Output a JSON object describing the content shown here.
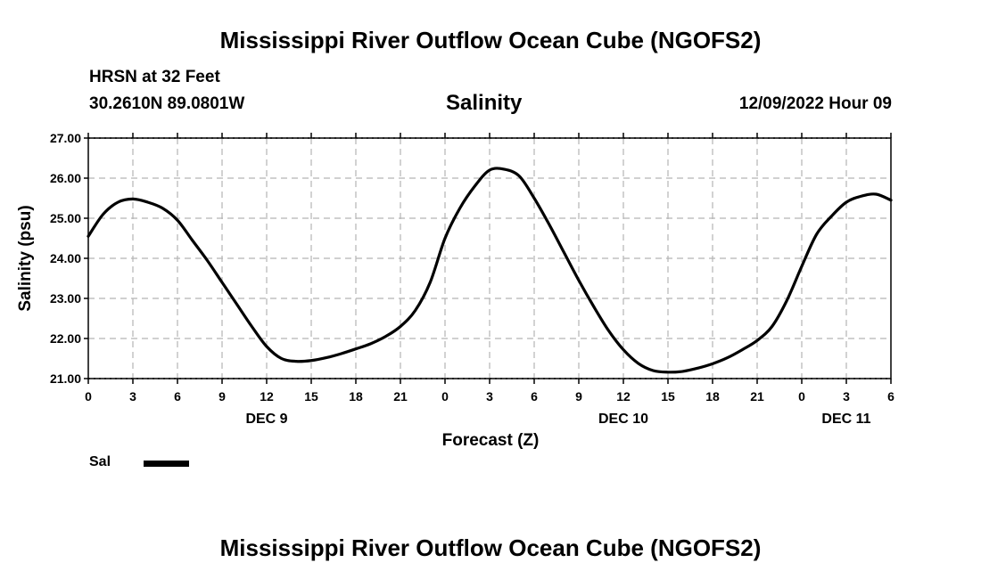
{
  "page": {
    "title_top": "Mississippi River Outflow Ocean Cube (NGOFS2)",
    "title_bottom": "Mississippi River Outflow Ocean Cube (NGOFS2)",
    "station_line": "HRSN at 32 Feet",
    "coords_line": "30.2610N  89.0801W",
    "variable_title": "Salinity",
    "datetime": "12/09/2022 Hour 09",
    "legend_label": "Sal"
  },
  "colors": {
    "line": "#000000",
    "grid": "#b4b4b4"
  },
  "chart_data": {
    "type": "line",
    "title": "Salinity",
    "xlabel": "Forecast (Z)",
    "ylabel": "Salinity (psu)",
    "xlim": [
      0,
      54
    ],
    "ylim": [
      21.0,
      27.0
    ],
    "yticks": [
      21.0,
      22.0,
      23.0,
      24.0,
      25.0,
      26.0,
      27.0
    ],
    "ytick_labels": [
      "21.00",
      "22.00",
      "23.00",
      "24.00",
      "25.00",
      "26.00",
      "27.00"
    ],
    "xticks": [
      0,
      3,
      6,
      9,
      12,
      15,
      18,
      21,
      24,
      27,
      30,
      33,
      36,
      39,
      42,
      45,
      48,
      51,
      54
    ],
    "xtick_labels": [
      "0",
      "3",
      "6",
      "9",
      "12",
      "15",
      "18",
      "21",
      "0",
      "3",
      "6",
      "9",
      "12",
      "15",
      "18",
      "21",
      "0",
      "3",
      "6"
    ],
    "day_labels": [
      {
        "x": 12,
        "label": "DEC 9"
      },
      {
        "x": 36,
        "label": "DEC 10"
      },
      {
        "x": 51,
        "label": "DEC 11"
      }
    ],
    "grid": true,
    "legend": "bottom-left",
    "series": [
      {
        "name": "Sal",
        "x": [
          0,
          1,
          2,
          3,
          4,
          5,
          6,
          7,
          8,
          9,
          10,
          11,
          12,
          13,
          14,
          15,
          16,
          17,
          18,
          19,
          20,
          21,
          22,
          23,
          24,
          25,
          26,
          27,
          28,
          29,
          30,
          31,
          32,
          33,
          34,
          35,
          36,
          37,
          38,
          39,
          40,
          41,
          42,
          43,
          44,
          45,
          46,
          47,
          48,
          49,
          50,
          51,
          52,
          53,
          54
        ],
        "values": [
          24.55,
          25.1,
          25.4,
          25.48,
          25.4,
          25.25,
          24.95,
          24.45,
          23.95,
          23.4,
          22.85,
          22.3,
          21.8,
          21.5,
          21.43,
          21.45,
          21.52,
          21.62,
          21.74,
          21.87,
          22.05,
          22.3,
          22.7,
          23.4,
          24.5,
          25.25,
          25.8,
          26.2,
          26.22,
          26.05,
          25.5,
          24.85,
          24.15,
          23.45,
          22.8,
          22.2,
          21.72,
          21.38,
          21.2,
          21.16,
          21.18,
          21.26,
          21.37,
          21.52,
          21.72,
          21.95,
          22.3,
          22.95,
          23.8,
          24.6,
          25.05,
          25.4,
          25.55,
          25.6,
          25.45
        ]
      }
    ]
  }
}
